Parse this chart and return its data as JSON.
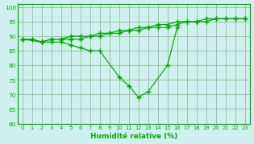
{
  "line_top": [
    89,
    89,
    88,
    89,
    89,
    90,
    90,
    90,
    91,
    91,
    92,
    92,
    93,
    93,
    94,
    94,
    95,
    95,
    95,
    96,
    96,
    96,
    96,
    96
  ],
  "line_mid": [
    89,
    89,
    88,
    89,
    89,
    89,
    89,
    90,
    90,
    91,
    91,
    92,
    92,
    93,
    93,
    93,
    94,
    95,
    95,
    95,
    96,
    96,
    96,
    96
  ],
  "line_bot_x": [
    0,
    2,
    3,
    4,
    5,
    6,
    7,
    8,
    10,
    11,
    12,
    13,
    15,
    16
  ],
  "line_bot_y": [
    89,
    88,
    88,
    88,
    87,
    86,
    85,
    85,
    76,
    73,
    69,
    71,
    80,
    93
  ],
  "xlabel_real": "Humidité relative (%)",
  "bg_color": "#d0efef",
  "line_color": "#00aa00",
  "grid_color": "#aaccaa",
  "y_min": 60,
  "y_max": 100,
  "x_min": 0,
  "x_max": 23
}
